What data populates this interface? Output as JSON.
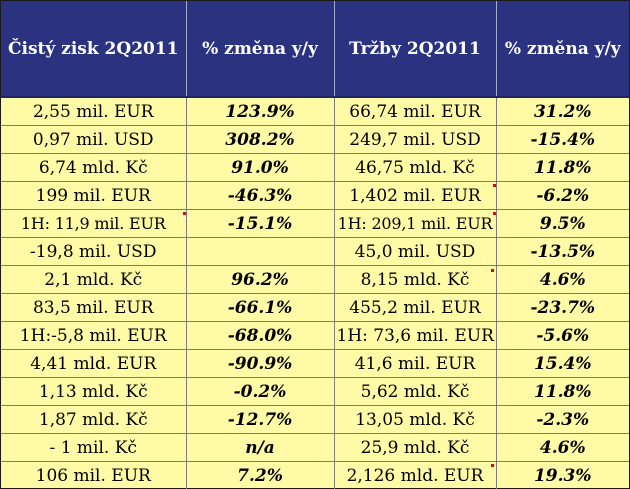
{
  "table": {
    "headers": [
      "Čistý zisk 2Q2011",
      "% změna y/y",
      "Tržby 2Q2011",
      "% změna y/y"
    ],
    "rows": [
      {
        "profit": "2,55 mil. EUR",
        "profit_change": "123.9%",
        "revenue": "66,74 mil. EUR",
        "revenue_change": "31.2%"
      },
      {
        "profit": "0,97 mil. USD",
        "profit_change": "308.2%",
        "revenue": "249,7 mil. USD",
        "revenue_change": "-15.4%"
      },
      {
        "profit": "6,74 mld. Kč",
        "profit_change": "91.0%",
        "revenue": "46,75 mld. Kč",
        "revenue_change": "11.8%"
      },
      {
        "profit": "199 mil. EUR",
        "profit_change": "-46.3%",
        "revenue": "1,402 mil. EUR",
        "revenue_change": "-6.2%"
      },
      {
        "profit": "1H: 11,9 mil. EUR",
        "profit_change": "-15.1%",
        "revenue": "1H: 209,1 mil. EUR",
        "revenue_change": "9.5%"
      },
      {
        "profit": "-19,8 mil. USD",
        "profit_change": "",
        "revenue": "45,0 mil. USD",
        "revenue_change": "-13.5%"
      },
      {
        "profit": "2,1 mld. Kč",
        "profit_change": "96.2%",
        "revenue": "8,15 mld. Kč",
        "revenue_change": "4.6%"
      },
      {
        "profit": "83,5 mil. EUR",
        "profit_change": "-66.1%",
        "revenue": "455,2 mil. EUR",
        "revenue_change": "-23.7%"
      },
      {
        "profit": "1H:-5,8 mil. EUR",
        "profit_change": "-68.0%",
        "revenue": "1H: 73,6 mil. EUR",
        "revenue_change": "-5.6%"
      },
      {
        "profit": "4,41 mld. EUR",
        "profit_change": "-90.9%",
        "revenue": "41,6 mil. EUR",
        "revenue_change": "15.4%"
      },
      {
        "profit": "1,13 mld. Kč",
        "profit_change": "-0.2%",
        "revenue": "5,62 mld. Kč",
        "revenue_change": "11.8%"
      },
      {
        "profit": "1,87 mld. Kč",
        "profit_change": "-12.7%",
        "revenue": "13,05 mld. Kč",
        "revenue_change": "-2.3%"
      },
      {
        "profit": "- 1 mil. Kč",
        "profit_change": "n/a",
        "revenue": "25,9 mld. Kč",
        "revenue_change": "4.6%"
      },
      {
        "profit": "106 mil. EUR",
        "profit_change": "7.2%",
        "revenue": "2,126 mld. EUR",
        "revenue_change": "19.3%"
      }
    ]
  },
  "colors": {
    "header_background": "#2b3280",
    "header_text": "#ffffff",
    "body_background": "#fffaa6",
    "marker": "#e0001a"
  }
}
